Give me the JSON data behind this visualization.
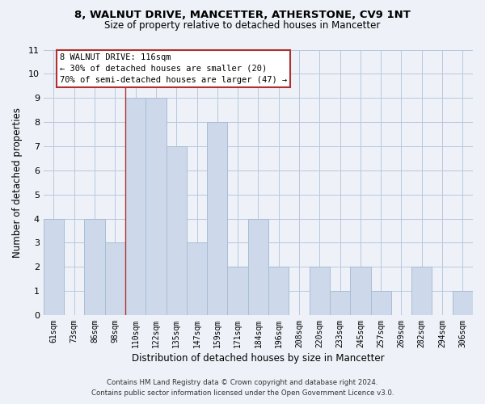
{
  "title": "8, WALNUT DRIVE, MANCETTER, ATHERSTONE, CV9 1NT",
  "subtitle": "Size of property relative to detached houses in Mancetter",
  "xlabel": "Distribution of detached houses by size in Mancetter",
  "ylabel": "Number of detached properties",
  "footer_line1": "Contains HM Land Registry data © Crown copyright and database right 2024.",
  "footer_line2": "Contains public sector information licensed under the Open Government Licence v3.0.",
  "bin_labels": [
    "61sqm",
    "73sqm",
    "86sqm",
    "98sqm",
    "110sqm",
    "122sqm",
    "135sqm",
    "147sqm",
    "159sqm",
    "171sqm",
    "184sqm",
    "196sqm",
    "208sqm",
    "220sqm",
    "233sqm",
    "245sqm",
    "257sqm",
    "269sqm",
    "282sqm",
    "294sqm",
    "306sqm"
  ],
  "bar_heights": [
    4,
    0,
    4,
    3,
    9,
    9,
    7,
    3,
    8,
    2,
    4,
    2,
    0,
    2,
    1,
    2,
    1,
    0,
    2,
    0,
    1
  ],
  "bar_color": "#cdd9ea",
  "bar_edge_color": "#a8bdd4",
  "highlight_bar_index": 4,
  "highlight_edge_color": "#b03030",
  "ylim": [
    0,
    11
  ],
  "yticks": [
    0,
    1,
    2,
    3,
    4,
    5,
    6,
    7,
    8,
    9,
    10,
    11
  ],
  "annotation_title": "8 WALNUT DRIVE: 116sqm",
  "annotation_line1": "← 30% of detached houses are smaller (20)",
  "annotation_line2": "70% of semi-detached houses are larger (47) →",
  "annotation_box_color": "#ffffff",
  "annotation_box_edge": "#b03030",
  "grid_color": "#b8c8dc",
  "background_color": "#eef2f8",
  "plot_bg_color": "#eef2f8"
}
